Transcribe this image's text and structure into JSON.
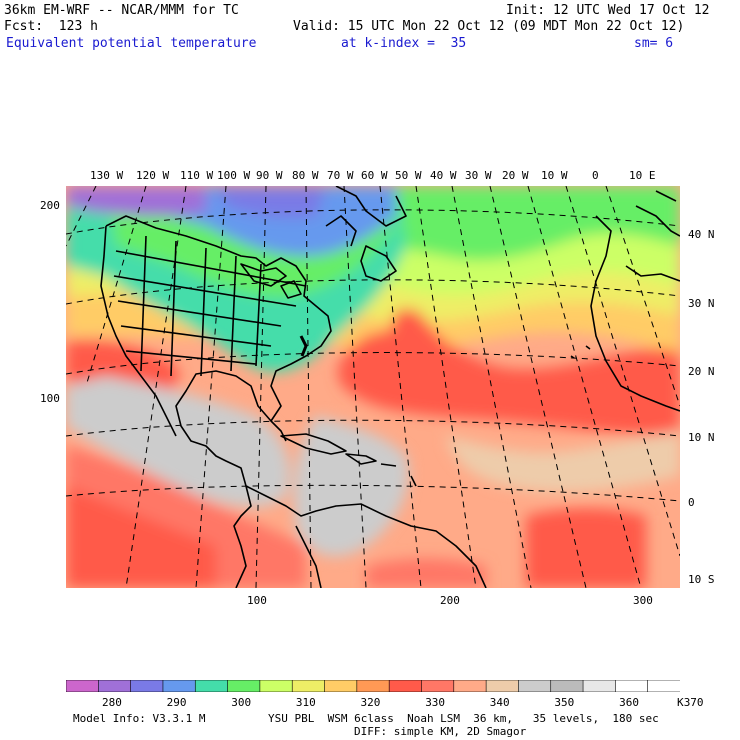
{
  "header": {
    "model_title": "36km EM-WRF -- NCAR/MMM for TC",
    "init": "Init: 12 UTC Wed 17 Oct 12",
    "forecast": "Fcst:  123 h",
    "valid": "Valid: 15 UTC Mon 22 Oct 12 (09 MDT Mon 22 Oct 12)",
    "field": "Equivalent potential temperature",
    "level": "at k-index =  35",
    "smoothing": "sm= 6"
  },
  "map": {
    "longitude_labels": [
      "130 W",
      "120 W",
      "110 W",
      "100 W",
      "90 W",
      "80 W",
      "70 W",
      "60 W",
      "50 W",
      "40 W",
      "30 W",
      "20 W",
      "10 W",
      "0",
      "10 E"
    ],
    "latitude_labels": [
      "40 N",
      "30 N",
      "20 N",
      "10 N",
      "0",
      "10 S"
    ],
    "grid_y_labels": [
      "200",
      "100"
    ],
    "grid_x_labels": [
      "100",
      "200",
      "300"
    ]
  },
  "colorbar": {
    "labels": [
      "280",
      "290",
      "300",
      "310",
      "320",
      "330",
      "340",
      "350",
      "360",
      "370"
    ],
    "unit": "K",
    "colors": [
      "#cc66cc",
      "#a070d8",
      "#7a7ae6",
      "#6699ee",
      "#44ddaa",
      "#66ee66",
      "#ccff66",
      "#eeee66",
      "#ffcc66",
      "#ff9955",
      "#ff5a4a",
      "#ff7766",
      "#ffaa88",
      "#eeccaa",
      "#cccccc",
      "#bbbbbb",
      "#e8e8e8",
      "#ffffff",
      "#ffffff"
    ]
  },
  "footer": {
    "model_info": "Model Info: V3.3.1 M",
    "physics": "YSU PBL  WSM 6class  Noah LSM  36 km,   35 levels,  180 sec",
    "diffusion": "DIFF: simple KM, 2D Smagor"
  }
}
